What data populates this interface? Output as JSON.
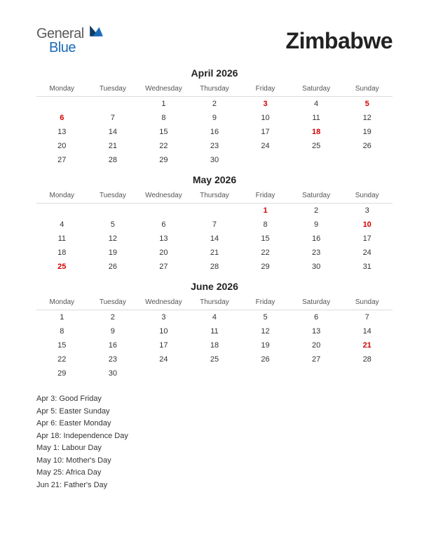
{
  "logo": {
    "general": "General",
    "blue": "Blue"
  },
  "country": "Zimbabwe",
  "colors": {
    "holiday": "#d40000",
    "text": "#333333",
    "logo_blue": "#1a6bb8",
    "logo_gray": "#5a5a5a",
    "background": "#ffffff",
    "header_border": "#dcdcdc"
  },
  "day_headers": [
    "Monday",
    "Tuesday",
    "Wednesday",
    "Thursday",
    "Friday",
    "Saturday",
    "Sunday"
  ],
  "months": [
    {
      "title": "April 2026",
      "weeks": [
        [
          {
            "n": ""
          },
          {
            "n": ""
          },
          {
            "n": "1"
          },
          {
            "n": "2"
          },
          {
            "n": "3",
            "h": true
          },
          {
            "n": "4"
          },
          {
            "n": "5",
            "h": true
          }
        ],
        [
          {
            "n": "6",
            "h": true
          },
          {
            "n": "7"
          },
          {
            "n": "8"
          },
          {
            "n": "9"
          },
          {
            "n": "10"
          },
          {
            "n": "11"
          },
          {
            "n": "12"
          }
        ],
        [
          {
            "n": "13"
          },
          {
            "n": "14"
          },
          {
            "n": "15"
          },
          {
            "n": "16"
          },
          {
            "n": "17"
          },
          {
            "n": "18",
            "h": true
          },
          {
            "n": "19"
          }
        ],
        [
          {
            "n": "20"
          },
          {
            "n": "21"
          },
          {
            "n": "22"
          },
          {
            "n": "23"
          },
          {
            "n": "24"
          },
          {
            "n": "25"
          },
          {
            "n": "26"
          }
        ],
        [
          {
            "n": "27"
          },
          {
            "n": "28"
          },
          {
            "n": "29"
          },
          {
            "n": "30"
          },
          {
            "n": ""
          },
          {
            "n": ""
          },
          {
            "n": ""
          }
        ]
      ]
    },
    {
      "title": "May 2026",
      "weeks": [
        [
          {
            "n": ""
          },
          {
            "n": ""
          },
          {
            "n": ""
          },
          {
            "n": ""
          },
          {
            "n": "1",
            "h": true
          },
          {
            "n": "2"
          },
          {
            "n": "3"
          }
        ],
        [
          {
            "n": "4"
          },
          {
            "n": "5"
          },
          {
            "n": "6"
          },
          {
            "n": "7"
          },
          {
            "n": "8"
          },
          {
            "n": "9"
          },
          {
            "n": "10",
            "h": true
          }
        ],
        [
          {
            "n": "11"
          },
          {
            "n": "12"
          },
          {
            "n": "13"
          },
          {
            "n": "14"
          },
          {
            "n": "15"
          },
          {
            "n": "16"
          },
          {
            "n": "17"
          }
        ],
        [
          {
            "n": "18"
          },
          {
            "n": "19"
          },
          {
            "n": "20"
          },
          {
            "n": "21"
          },
          {
            "n": "22"
          },
          {
            "n": "23"
          },
          {
            "n": "24"
          }
        ],
        [
          {
            "n": "25",
            "h": true
          },
          {
            "n": "26"
          },
          {
            "n": "27"
          },
          {
            "n": "28"
          },
          {
            "n": "29"
          },
          {
            "n": "30"
          },
          {
            "n": "31"
          }
        ]
      ]
    },
    {
      "title": "June 2026",
      "weeks": [
        [
          {
            "n": "1"
          },
          {
            "n": "2"
          },
          {
            "n": "3"
          },
          {
            "n": "4"
          },
          {
            "n": "5"
          },
          {
            "n": "6"
          },
          {
            "n": "7"
          }
        ],
        [
          {
            "n": "8"
          },
          {
            "n": "9"
          },
          {
            "n": "10"
          },
          {
            "n": "11"
          },
          {
            "n": "12"
          },
          {
            "n": "13"
          },
          {
            "n": "14"
          }
        ],
        [
          {
            "n": "15"
          },
          {
            "n": "16"
          },
          {
            "n": "17"
          },
          {
            "n": "18"
          },
          {
            "n": "19"
          },
          {
            "n": "20"
          },
          {
            "n": "21",
            "h": true
          }
        ],
        [
          {
            "n": "22"
          },
          {
            "n": "23"
          },
          {
            "n": "24"
          },
          {
            "n": "25"
          },
          {
            "n": "26"
          },
          {
            "n": "27"
          },
          {
            "n": "28"
          }
        ],
        [
          {
            "n": "29"
          },
          {
            "n": "30"
          },
          {
            "n": ""
          },
          {
            "n": ""
          },
          {
            "n": ""
          },
          {
            "n": ""
          },
          {
            "n": ""
          }
        ]
      ]
    }
  ],
  "holiday_list": [
    "Apr 3: Good Friday",
    "Apr 5: Easter Sunday",
    "Apr 6: Easter Monday",
    "Apr 18: Independence Day",
    "May 1: Labour Day",
    "May 10: Mother's Day",
    "May 25: Africa Day",
    "Jun 21: Father's Day"
  ]
}
